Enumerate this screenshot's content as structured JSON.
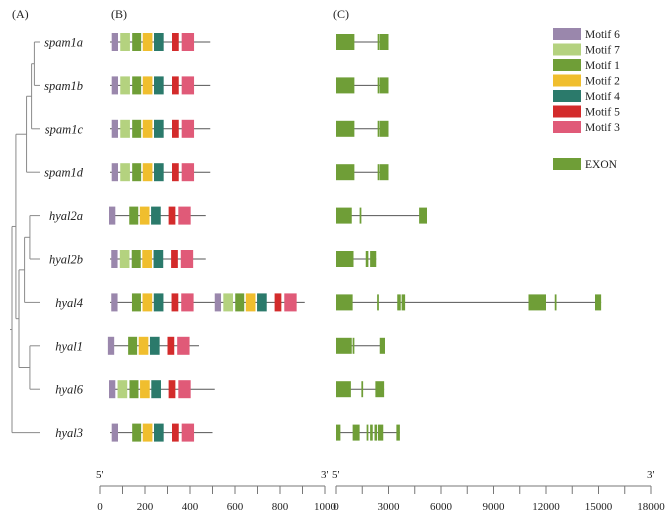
{
  "panels": [
    "(A)",
    "(B)",
    "(C)"
  ],
  "genes": [
    {
      "name": "spam1a",
      "protein_end": 490,
      "motifs": [
        {
          "m": 6,
          "start": 52,
          "end": 80
        },
        {
          "m": 7,
          "start": 90,
          "end": 133
        },
        {
          "m": 1,
          "start": 143,
          "end": 183
        },
        {
          "m": 2,
          "start": 190,
          "end": 233
        },
        {
          "m": 4,
          "start": 240,
          "end": 283
        },
        {
          "m": 5,
          "start": 320,
          "end": 350
        },
        {
          "m": 3,
          "start": 363,
          "end": 418
        }
      ],
      "exons": [
        [
          0,
          1050
        ],
        [
          2380,
          2480
        ],
        [
          2500,
          3000
        ]
      ]
    },
    {
      "name": "spam1b",
      "protein_end": 490,
      "motifs": [
        {
          "m": 6,
          "start": 52,
          "end": 80
        },
        {
          "m": 7,
          "start": 90,
          "end": 133
        },
        {
          "m": 1,
          "start": 143,
          "end": 183
        },
        {
          "m": 2,
          "start": 190,
          "end": 233
        },
        {
          "m": 4,
          "start": 240,
          "end": 283
        },
        {
          "m": 5,
          "start": 320,
          "end": 350
        },
        {
          "m": 3,
          "start": 363,
          "end": 418
        }
      ],
      "exons": [
        [
          0,
          1050
        ],
        [
          2380,
          2480
        ],
        [
          2500,
          3000
        ]
      ]
    },
    {
      "name": "spam1c",
      "protein_end": 490,
      "motifs": [
        {
          "m": 6,
          "start": 52,
          "end": 80
        },
        {
          "m": 7,
          "start": 90,
          "end": 133
        },
        {
          "m": 1,
          "start": 143,
          "end": 183
        },
        {
          "m": 2,
          "start": 190,
          "end": 233
        },
        {
          "m": 4,
          "start": 240,
          "end": 283
        },
        {
          "m": 5,
          "start": 320,
          "end": 350
        },
        {
          "m": 3,
          "start": 363,
          "end": 418
        }
      ],
      "exons": [
        [
          0,
          1050
        ],
        [
          2380,
          2480
        ],
        [
          2500,
          3000
        ]
      ]
    },
    {
      "name": "spam1d",
      "protein_end": 490,
      "motifs": [
        {
          "m": 6,
          "start": 52,
          "end": 80
        },
        {
          "m": 7,
          "start": 90,
          "end": 133
        },
        {
          "m": 1,
          "start": 143,
          "end": 183
        },
        {
          "m": 2,
          "start": 190,
          "end": 233
        },
        {
          "m": 4,
          "start": 240,
          "end": 283
        },
        {
          "m": 5,
          "start": 320,
          "end": 350
        },
        {
          "m": 3,
          "start": 363,
          "end": 418
        }
      ],
      "exons": [
        [
          0,
          1050
        ],
        [
          2380,
          2480
        ],
        [
          2500,
          3000
        ]
      ]
    },
    {
      "name": "hyal2a",
      "protein_end": 470,
      "motifs": [
        {
          "m": 6,
          "start": 40,
          "end": 68
        },
        {
          "m": 1,
          "start": 130,
          "end": 170
        },
        {
          "m": 2,
          "start": 177,
          "end": 220
        },
        {
          "m": 4,
          "start": 227,
          "end": 270
        },
        {
          "m": 5,
          "start": 305,
          "end": 335
        },
        {
          "m": 3,
          "start": 348,
          "end": 403
        }
      ],
      "exons": [
        [
          0,
          900
        ],
        [
          1350,
          1450
        ],
        [
          4750,
          5200
        ]
      ]
    },
    {
      "name": "hyal2b",
      "protein_end": 470,
      "motifs": [
        {
          "m": 6,
          "start": 50,
          "end": 78
        },
        {
          "m": 7,
          "start": 88,
          "end": 131
        },
        {
          "m": 1,
          "start": 141,
          "end": 181
        },
        {
          "m": 2,
          "start": 188,
          "end": 231
        },
        {
          "m": 4,
          "start": 238,
          "end": 281
        },
        {
          "m": 5,
          "start": 316,
          "end": 346
        },
        {
          "m": 3,
          "start": 359,
          "end": 414
        }
      ],
      "exons": [
        [
          0,
          1000
        ],
        [
          1700,
          1850
        ],
        [
          1950,
          2300
        ]
      ]
    },
    {
      "name": "hyal4",
      "protein_end": 910,
      "motifs": [
        {
          "m": 6,
          "start": 50,
          "end": 78
        },
        {
          "m": 1,
          "start": 142,
          "end": 182
        },
        {
          "m": 2,
          "start": 189,
          "end": 232
        },
        {
          "m": 4,
          "start": 239,
          "end": 282
        },
        {
          "m": 5,
          "start": 318,
          "end": 348
        },
        {
          "m": 3,
          "start": 361,
          "end": 416
        },
        {
          "m": 6,
          "start": 510,
          "end": 538
        },
        {
          "m": 7,
          "start": 548,
          "end": 591
        },
        {
          "m": 1,
          "start": 601,
          "end": 641
        },
        {
          "m": 2,
          "start": 648,
          "end": 691
        },
        {
          "m": 4,
          "start": 698,
          "end": 741
        },
        {
          "m": 5,
          "start": 776,
          "end": 806
        },
        {
          "m": 3,
          "start": 819,
          "end": 874
        }
      ],
      "exons": [
        [
          0,
          950
        ],
        [
          2350,
          2450
        ],
        [
          3500,
          3700
        ],
        [
          3750,
          3950
        ],
        [
          11000,
          12000
        ],
        [
          12500,
          12600
        ],
        [
          14800,
          15150
        ]
      ]
    },
    {
      "name": "hyal1",
      "protein_end": 440,
      "motifs": [
        {
          "m": 6,
          "start": 35,
          "end": 63
        },
        {
          "m": 1,
          "start": 125,
          "end": 165
        },
        {
          "m": 2,
          "start": 172,
          "end": 215
        },
        {
          "m": 4,
          "start": 222,
          "end": 265
        },
        {
          "m": 5,
          "start": 300,
          "end": 330
        },
        {
          "m": 3,
          "start": 343,
          "end": 398
        }
      ],
      "exons": [
        [
          0,
          900
        ],
        [
          950,
          1050
        ],
        [
          2500,
          2800
        ]
      ]
    },
    {
      "name": "hyal6",
      "protein_end": 510,
      "motifs": [
        {
          "m": 6,
          "start": 40,
          "end": 68
        },
        {
          "m": 7,
          "start": 78,
          "end": 121
        },
        {
          "m": 1,
          "start": 131,
          "end": 171
        },
        {
          "m": 2,
          "start": 178,
          "end": 221
        },
        {
          "m": 4,
          "start": 228,
          "end": 271
        },
        {
          "m": 5,
          "start": 305,
          "end": 335
        },
        {
          "m": 3,
          "start": 348,
          "end": 403
        }
      ],
      "exons": [
        [
          0,
          850
        ],
        [
          1450,
          1550
        ],
        [
          2250,
          2750
        ]
      ]
    },
    {
      "name": "hyal3",
      "protein_end": 500,
      "motifs": [
        {
          "m": 6,
          "start": 52,
          "end": 80
        },
        {
          "m": 1,
          "start": 143,
          "end": 183
        },
        {
          "m": 2,
          "start": 190,
          "end": 233
        },
        {
          "m": 4,
          "start": 240,
          "end": 283
        },
        {
          "m": 5,
          "start": 320,
          "end": 350
        },
        {
          "m": 3,
          "start": 363,
          "end": 418
        }
      ],
      "exons": [
        [
          0,
          250
        ],
        [
          950,
          1350
        ],
        [
          1750,
          1850
        ],
        [
          1950,
          2100
        ],
        [
          2200,
          2350
        ],
        [
          2400,
          2700
        ],
        [
          3450,
          3650
        ]
      ]
    }
  ],
  "motif_legend": [
    {
      "id": 6,
      "label": "Motif 6",
      "color": "#9a87ac"
    },
    {
      "id": 7,
      "label": "Motif 7",
      "color": "#b4d27f"
    },
    {
      "id": 1,
      "label": "Motif 1",
      "color": "#6f9e37"
    },
    {
      "id": 2,
      "label": "Motif 2",
      "color": "#f0be2e"
    },
    {
      "id": 4,
      "label": "Motif 4",
      "color": "#2b7a6b"
    },
    {
      "id": 5,
      "label": "Motif 5",
      "color": "#d32b2b"
    },
    {
      "id": 3,
      "label": "Motif 3",
      "color": "#e05a78"
    }
  ],
  "exon_legend": {
    "label": "EXON",
    "color": "#6f9e37"
  },
  "protein_axis": {
    "min": 0,
    "max": 1000,
    "ticks": [
      0,
      200,
      400,
      600,
      800,
      1000
    ],
    "minor_step": 100,
    "left_end_label": "5'",
    "right_end_label": "3'"
  },
  "gene_axis": {
    "min": 0,
    "max": 18000,
    "ticks": [
      0,
      3000,
      6000,
      9000,
      12000,
      15000,
      18000
    ],
    "minor_step": 1500,
    "left_end_label": "5'",
    "right_end_label": "3'"
  },
  "tree": {
    "nodes": [
      {
        "id": "spam1a",
        "tip": 0
      },
      {
        "id": "spam1b",
        "tip": 1
      },
      {
        "id": "spam1c",
        "tip": 2
      },
      {
        "id": "spam1d",
        "tip": 3
      },
      {
        "id": "hyal2a",
        "tip": 4
      },
      {
        "id": "hyal2b",
        "tip": 5
      },
      {
        "id": "hyal4",
        "tip": 6
      },
      {
        "id": "hyal1",
        "tip": 7
      },
      {
        "id": "hyal6",
        "tip": 8
      },
      {
        "id": "hyal3",
        "tip": 9
      },
      {
        "id": "n_ab",
        "children": [
          "spam1a",
          "spam1b"
        ],
        "depth": 0.8
      },
      {
        "id": "n_abc",
        "children": [
          "n_ab",
          "spam1c"
        ],
        "depth": 0.7
      },
      {
        "id": "n_spam",
        "children": [
          "n_abc",
          "spam1d"
        ],
        "depth": 0.52
      },
      {
        "id": "n_h2",
        "children": [
          "hyal2a",
          "hyal2b"
        ],
        "depth": 0.64
      },
      {
        "id": "n_h2_4",
        "children": [
          "n_h2",
          "hyal4"
        ],
        "depth": 0.45
      },
      {
        "id": "n_16",
        "children": [
          "hyal1",
          "hyal6"
        ],
        "depth": 0.64
      },
      {
        "id": "n_mid",
        "children": [
          "n_h2_4",
          "n_16"
        ],
        "depth": 0.25
      },
      {
        "id": "n_in",
        "children": [
          "n_spam",
          "n_mid"
        ],
        "depth": 0.14
      },
      {
        "id": "root",
        "children": [
          "n_in",
          "hyal3"
        ],
        "depth": 0.0
      }
    ]
  }
}
